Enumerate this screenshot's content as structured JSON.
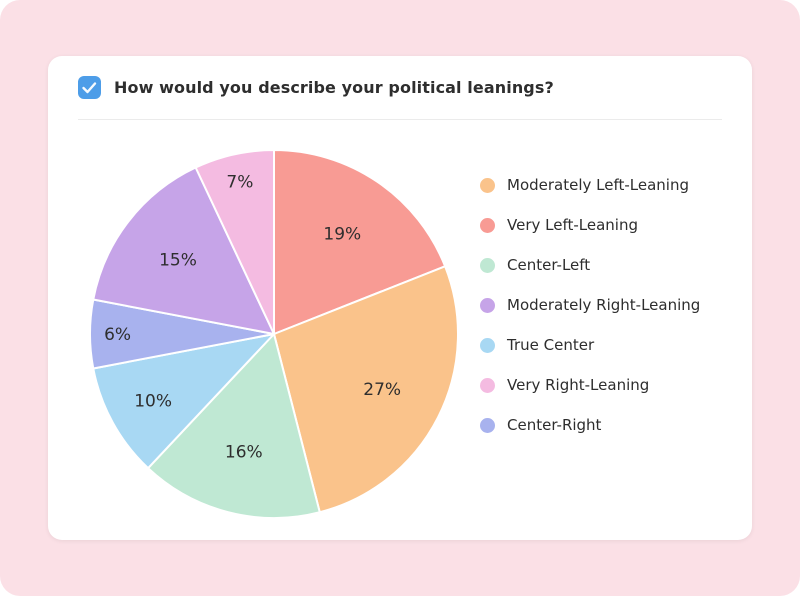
{
  "page": {
    "background_color": "#FBE0E6"
  },
  "header": {
    "question_title": "How would you describe your political leanings?",
    "question_type_icon": "checkbox-icon",
    "question_icon_color": "#4D9DE8"
  },
  "chart_data": {
    "type": "pie",
    "title": "How would you describe your political leanings?",
    "start_angle_deg": 0,
    "direction": "clockwise",
    "slice_border_color": "#ffffff",
    "slices": [
      {
        "label": "Very Left-Leaning",
        "value": 19,
        "display": "19%",
        "color": "#F89B94"
      },
      {
        "label": "Moderately Left-Leaning",
        "value": 27,
        "display": "27%",
        "color": "#FAC38B"
      },
      {
        "label": "Center-Left",
        "value": 16,
        "display": "16%",
        "color": "#BFE8D3"
      },
      {
        "label": "True Center",
        "value": 10,
        "display": "10%",
        "color": "#A8D8F3"
      },
      {
        "label": "Center-Right",
        "value": 6,
        "display": "6%",
        "color": "#A8B2EE"
      },
      {
        "label": "Moderately Right-Leaning",
        "value": 15,
        "display": "15%",
        "color": "#C6A4E8"
      },
      {
        "label": "Very Right-Leaning",
        "value": 7,
        "display": "7%",
        "color": "#F4BBE1"
      }
    ],
    "legend_position": "right",
    "legend": [
      {
        "label": "Moderately Left-Leaning",
        "color": "#FAC38B"
      },
      {
        "label": "Very Left-Leaning",
        "color": "#F89B94"
      },
      {
        "label": "Center-Left",
        "color": "#BFE8D3"
      },
      {
        "label": "Moderately Right-Leaning",
        "color": "#C6A4E8"
      },
      {
        "label": "True Center",
        "color": "#A8D8F3"
      },
      {
        "label": "Very Right-Leaning",
        "color": "#F4BBE1"
      },
      {
        "label": "Center-Right",
        "color": "#A8B2EE"
      }
    ]
  }
}
